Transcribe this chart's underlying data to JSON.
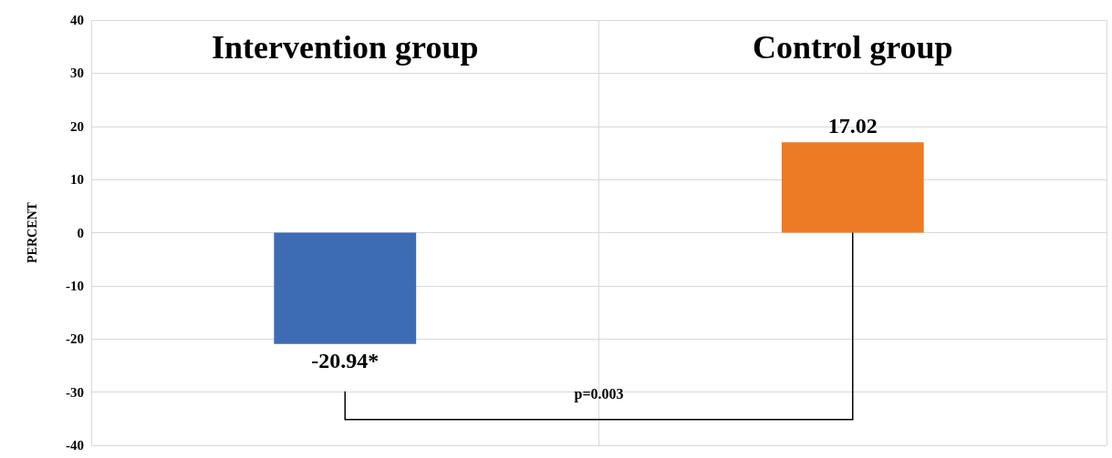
{
  "chart_data": {
    "type": "bar",
    "categories": [
      "Intervention group",
      "Control group"
    ],
    "values": [
      -20.94,
      17.02
    ],
    "colors": [
      "#3d6cb5",
      "#ed7b25"
    ],
    "value_labels": [
      "-20.94*",
      "17.02"
    ],
    "ylabel": "PERCENT",
    "ylim": [
      -40,
      40
    ],
    "yticks": [
      -40,
      -30,
      -20,
      -10,
      0,
      10,
      20,
      30,
      40
    ],
    "grid": true,
    "annotations": [
      "p=0.003"
    ]
  }
}
